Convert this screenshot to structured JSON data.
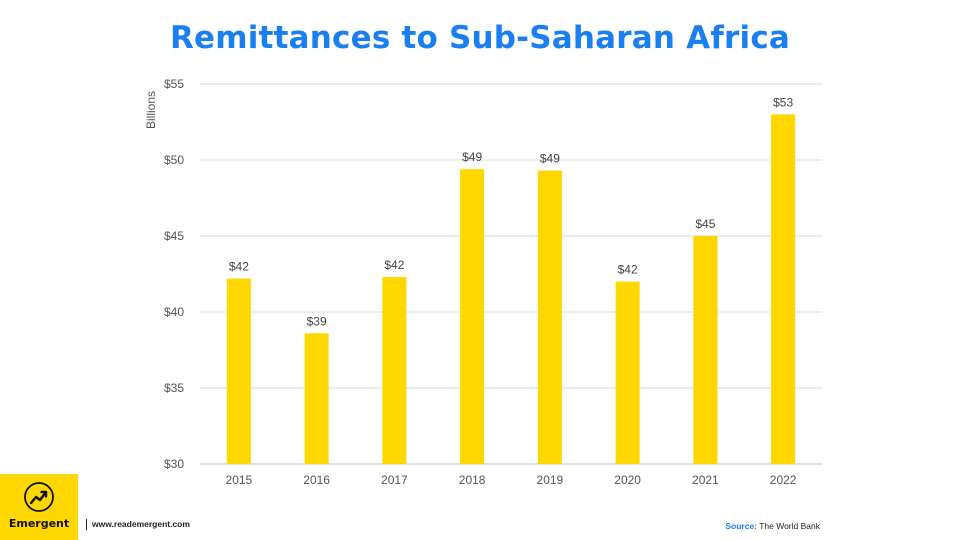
{
  "chart_data": {
    "type": "bar",
    "title": "Remittances to Sub-Saharan Africa",
    "ylabel": "Billions",
    "categories": [
      "2015",
      "2016",
      "2017",
      "2018",
      "2019",
      "2020",
      "2021",
      "2022"
    ],
    "values": [
      42.2,
      38.6,
      42.3,
      49.4,
      49.3,
      42.0,
      45.0,
      53.0
    ],
    "data_labels": [
      "$42",
      "$39",
      "$42",
      "$49",
      "$49",
      "$42",
      "$45",
      "$53"
    ],
    "ylim": [
      30,
      55
    ],
    "yticks": [
      30,
      35,
      40,
      45,
      50,
      55
    ],
    "ytick_labels": [
      "$30",
      "$35",
      "$40",
      "$45",
      "$50",
      "$55"
    ],
    "bar_color": "#ffd700",
    "grid": true
  },
  "footer": {
    "brand": "Emergent",
    "logo_icon": "trend-up-icon",
    "website": "www.reademergent.com",
    "source_label": "Source:",
    "source_value": "The World Bank"
  },
  "colors": {
    "title": "#1a7ff0",
    "accent": "#ffd700"
  }
}
